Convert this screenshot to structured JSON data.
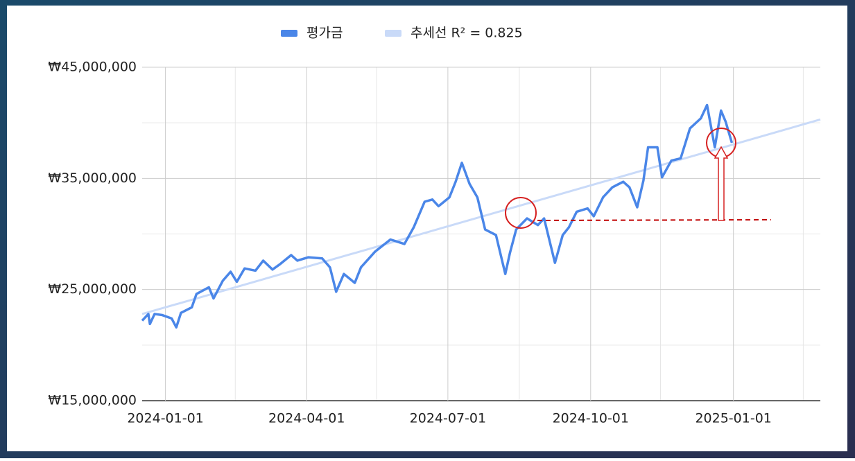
{
  "chart_data": {
    "type": "line",
    "series": [
      {
        "name": "평가금",
        "color": "#4a86e8",
        "x": [
          "2023-12-17",
          "2023-12-21",
          "2023-12-22",
          "2023-12-25",
          "2023-12-30",
          "2024-01-05",
          "2024-01-08",
          "2024-01-11",
          "2024-01-18",
          "2024-01-21",
          "2024-01-29",
          "2024-02-01",
          "2024-02-07",
          "2024-02-12",
          "2024-02-16",
          "2024-02-21",
          "2024-02-28",
          "2024-03-04",
          "2024-03-10",
          "2024-03-15",
          "2024-03-22",
          "2024-03-26",
          "2024-04-02",
          "2024-04-11",
          "2024-04-16",
          "2024-04-20",
          "2024-04-25",
          "2024-05-02",
          "2024-05-06",
          "2024-05-15",
          "2024-05-25",
          "2024-06-03",
          "2024-06-09",
          "2024-06-16",
          "2024-06-21",
          "2024-06-25",
          "2024-07-02",
          "2024-07-06",
          "2024-07-10",
          "2024-07-15",
          "2024-07-20",
          "2024-07-25",
          "2024-08-01",
          "2024-08-07",
          "2024-08-10",
          "2024-08-14",
          "2024-08-21",
          "2024-08-28",
          "2024-09-01",
          "2024-09-08",
          "2024-09-13",
          "2024-09-17",
          "2024-09-22",
          "2024-09-29",
          "2024-10-03",
          "2024-10-09",
          "2024-10-15",
          "2024-10-22",
          "2024-10-26",
          "2024-10-31",
          "2024-11-04",
          "2024-11-07",
          "2024-11-13",
          "2024-11-16",
          "2024-11-22",
          "2024-11-28",
          "2024-12-04",
          "2024-12-11",
          "2024-12-15",
          "2024-12-20",
          "2024-12-24",
          "2024-12-27",
          "2024-12-31"
        ],
        "values": [
          22200000,
          22800000,
          21900000,
          22800000,
          22700000,
          22400000,
          21600000,
          22900000,
          23400000,
          24600000,
          25200000,
          24200000,
          25800000,
          26600000,
          25700000,
          26900000,
          26700000,
          27600000,
          26800000,
          27300000,
          28100000,
          27600000,
          27900000,
          27800000,
          27000000,
          24800000,
          26400000,
          25600000,
          27000000,
          28400000,
          29500000,
          29100000,
          30600000,
          32900000,
          33100000,
          32500000,
          33300000,
          34700000,
          36400000,
          34500000,
          33300000,
          30400000,
          29900000,
          26400000,
          28300000,
          30400000,
          31400000,
          30800000,
          31400000,
          27400000,
          29900000,
          30600000,
          32000000,
          32300000,
          31600000,
          33300000,
          34200000,
          34700000,
          34200000,
          32400000,
          34800000,
          37800000,
          37800000,
          35100000,
          36600000,
          36800000,
          39500000,
          40400000,
          41600000,
          37800000,
          41100000,
          40100000,
          38200000
        ]
      },
      {
        "name": "추세선 R² = 0.825",
        "color": "#c9daf8",
        "x": [
          "2023-12-17",
          "2025-02-26"
        ],
        "values": [
          22800000,
          40300000
        ]
      }
    ],
    "xlim": [
      "2023-12-17",
      "2025-02-26"
    ],
    "xticks": [
      "2024-01-01",
      "2024-04-01",
      "2024-07-01",
      "2024-10-01",
      "2025-01-01"
    ],
    "minor_xticks": [
      "2024-02-15",
      "2024-05-16",
      "2024-08-16",
      "2024-11-15",
      "2025-02-15"
    ],
    "ylim": [
      15000000,
      45000000
    ],
    "yticks": [
      {
        "value": 15000000,
        "label": "₩15,000,000"
      },
      {
        "value": 25000000,
        "label": "₩25,000,000"
      },
      {
        "value": 35000000,
        "label": "₩35,000,000"
      },
      {
        "value": 45000000,
        "label": "₩45,000,000"
      }
    ],
    "minor_yticks": [
      20000000,
      30000000,
      40000000
    ],
    "grid": true,
    "legend": "top"
  }
}
